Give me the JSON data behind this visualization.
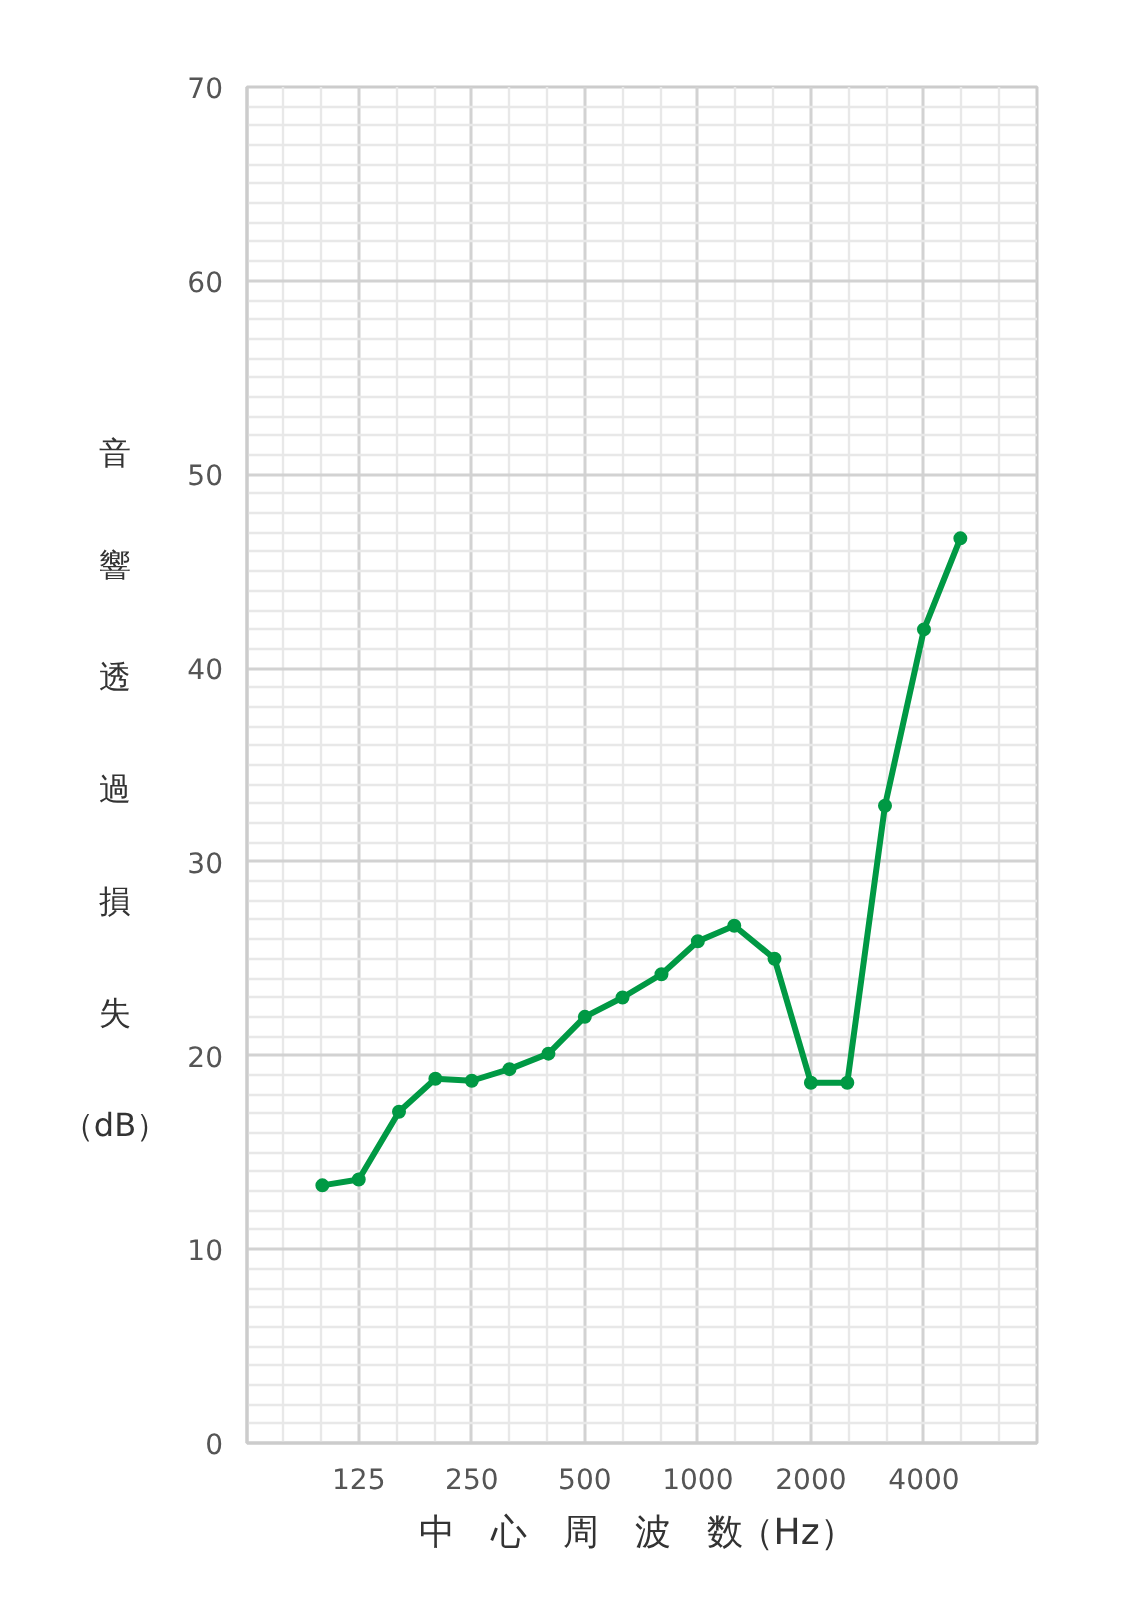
{
  "chart_data": {
    "type": "line",
    "xlabel": "中心周波数（Hz）",
    "ylabel": "音響透過損失（dB）",
    "x": [
      100,
      125,
      160,
      200,
      250,
      315,
      400,
      500,
      630,
      800,
      1000,
      1250,
      1600,
      2000,
      2500,
      3150,
      4000,
      5000
    ],
    "series": [
      {
        "color": "#009944",
        "values": [
          13.3,
          13.6,
          17.1,
          18.8,
          18.7,
          19.3,
          20.1,
          22.0,
          23.0,
          24.2,
          25.9,
          26.7,
          25.0,
          18.6,
          18.6,
          32.9,
          42.0,
          46.7
        ]
      }
    ],
    "log": "x",
    "xlim": [
      63,
      8000
    ],
    "xticks": [
      125,
      250,
      500,
      1000,
      2000,
      4000
    ],
    "ylim": [
      0,
      70
    ],
    "yticks": [
      0,
      10,
      20,
      30,
      40,
      50,
      60,
      70
    ],
    "grid": true,
    "marker": "circle",
    "line_style": "solid"
  }
}
